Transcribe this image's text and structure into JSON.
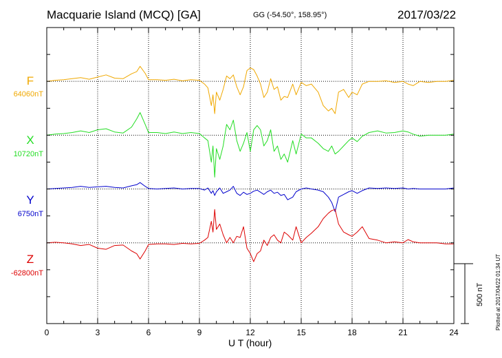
{
  "header": {
    "station": "Macquarie Island (MCQ)  [GA]",
    "coordinates": "GG (-54.50°, 158.95°)",
    "date": "2017/03/22"
  },
  "footer": {
    "plotted": "Plotted at 2017/04/22 01:34  UT"
  },
  "chart_data": {
    "type": "line",
    "title": "Macquarie Island (MCQ)  [GA]",
    "xlabel": "U T (hour)",
    "xlim": [
      0,
      24
    ],
    "xticks": [
      "0",
      "3",
      "6",
      "9",
      "12",
      "15",
      "18",
      "21",
      "24"
    ],
    "ylim": [
      -4.5,
      1.0
    ],
    "scale_bar": {
      "label": "500 nT",
      "value_nT": 500
    },
    "grid": true,
    "series": [
      {
        "name": "F",
        "baseline_label": "64060nT",
        "color": "#f0a800",
        "offset": 0,
        "t": [
          0,
          0.5,
          1,
          1.5,
          2,
          2.5,
          3,
          3.5,
          4,
          4.5,
          5,
          5.3,
          5.5,
          5.8,
          6,
          6.5,
          7,
          7.5,
          8,
          8.5,
          9,
          9.3,
          9.5,
          9.7,
          9.8,
          9.9,
          10,
          10.2,
          10.4,
          10.6,
          10.8,
          11,
          11.2,
          11.4,
          11.6,
          11.8,
          12,
          12.2,
          12.4,
          12.6,
          12.8,
          13,
          13.2,
          13.4,
          13.6,
          13.8,
          14,
          14.2,
          14.5,
          14.7,
          15,
          15.3,
          15.6,
          16,
          16.3,
          16.6,
          16.8,
          17,
          17.2,
          17.5,
          17.8,
          18,
          18.3,
          18.6,
          19,
          19.5,
          20,
          20.5,
          21,
          21.3,
          21.6,
          22,
          22.5,
          23,
          23.5,
          24
        ],
        "v": [
          0.0,
          0.02,
          0.03,
          0.05,
          0.07,
          0.04,
          0.08,
          0.12,
          0.06,
          0.05,
          0.14,
          0.18,
          0.28,
          0.15,
          0.03,
          0.03,
          0.02,
          0.04,
          0.01,
          0.03,
          0.02,
          -0.05,
          -0.12,
          -0.45,
          -0.25,
          -0.6,
          -0.2,
          -0.35,
          -0.15,
          0.1,
          0.05,
          0.12,
          -0.1,
          -0.25,
          -0.1,
          0.2,
          0.25,
          0.22,
          0.1,
          -0.05,
          -0.3,
          -0.2,
          0.05,
          -0.15,
          -0.1,
          -0.35,
          -0.28,
          -0.3,
          -0.05,
          -0.25,
          -0.02,
          -0.08,
          -0.05,
          -0.2,
          -0.45,
          -0.55,
          -0.5,
          -0.6,
          -0.2,
          -0.15,
          -0.3,
          -0.2,
          -0.25,
          -0.05,
          0.0,
          0.0,
          0.01,
          -0.02,
          0.0,
          -0.05,
          -0.08,
          0.0,
          -0.02,
          0.0,
          0.0,
          0.02
        ]
      },
      {
        "name": "X",
        "baseline_label": "10720nT",
        "color": "#22dd22",
        "offset": -1,
        "t": [
          0,
          0.5,
          1,
          1.5,
          2,
          2.5,
          3,
          3.5,
          4,
          4.5,
          5,
          5.3,
          5.5,
          5.8,
          6,
          6.5,
          7,
          7.5,
          8,
          8.5,
          9,
          9.3,
          9.5,
          9.7,
          9.8,
          9.9,
          10,
          10.2,
          10.4,
          10.6,
          10.8,
          11,
          11.2,
          11.4,
          11.6,
          11.8,
          12,
          12.2,
          12.4,
          12.6,
          12.8,
          13,
          13.2,
          13.4,
          13.6,
          13.8,
          14,
          14.2,
          14.5,
          14.7,
          15,
          15.3,
          15.6,
          16,
          16.3,
          16.6,
          16.8,
          17,
          17.2,
          17.5,
          17.8,
          18,
          18.3,
          18.6,
          19,
          19.5,
          20,
          20.5,
          21,
          21.3,
          21.6,
          22,
          22.5,
          23,
          23.5,
          24
        ],
        "v": [
          0.0,
          0.02,
          0.03,
          0.05,
          0.08,
          0.05,
          0.1,
          0.12,
          0.06,
          0.04,
          0.15,
          0.3,
          0.42,
          0.2,
          0.05,
          0.05,
          0.03,
          0.06,
          0.03,
          0.05,
          0.03,
          -0.05,
          -0.1,
          -0.5,
          -0.2,
          -0.78,
          -0.25,
          -0.45,
          -0.2,
          0.2,
          0.1,
          0.28,
          -0.1,
          -0.3,
          -0.15,
          0.05,
          -0.3,
          0.1,
          0.18,
          0.1,
          -0.2,
          -0.1,
          0.1,
          -0.3,
          -0.2,
          -0.45,
          -0.35,
          -0.5,
          -0.1,
          -0.35,
          0.02,
          -0.05,
          -0.05,
          -0.15,
          -0.25,
          -0.3,
          -0.2,
          -0.35,
          -0.3,
          -0.2,
          -0.1,
          -0.05,
          -0.12,
          -0.02,
          0.05,
          0.08,
          0.04,
          0.05,
          0.08,
          0.06,
          0.02,
          -0.02,
          0.0,
          0.0,
          0.0,
          0.02
        ]
      },
      {
        "name": "Y",
        "baseline_label": "6750nT",
        "color": "#0000cc",
        "offset": -2,
        "t": [
          0,
          0.5,
          1,
          1.5,
          2,
          2.5,
          3,
          3.5,
          4,
          4.5,
          5,
          5.3,
          5.5,
          5.8,
          6,
          6.5,
          7,
          7.5,
          8,
          8.5,
          9,
          9.3,
          9.5,
          9.7,
          9.8,
          9.9,
          10,
          10.2,
          10.4,
          10.6,
          10.8,
          11,
          11.2,
          11.4,
          11.6,
          11.8,
          12,
          12.2,
          12.4,
          12.6,
          12.8,
          13,
          13.2,
          13.4,
          13.6,
          13.8,
          14,
          14.2,
          14.5,
          14.7,
          15,
          15.3,
          15.6,
          16,
          16.3,
          16.6,
          16.8,
          17,
          17.2,
          17.5,
          17.8,
          18,
          18.3,
          18.6,
          19,
          19.5,
          20,
          20.5,
          21,
          21.3,
          21.6,
          22,
          22.5,
          23,
          23.5,
          24
        ],
        "v": [
          0.0,
          0.01,
          0.02,
          0.03,
          0.05,
          0.03,
          0.04,
          0.05,
          0.03,
          0.02,
          0.06,
          0.08,
          0.12,
          0.05,
          0.01,
          0.0,
          0.01,
          0.02,
          0.0,
          0.01,
          0.01,
          -0.02,
          0.02,
          -0.08,
          -0.03,
          -0.12,
          -0.05,
          0.02,
          -0.08,
          -0.05,
          -0.02,
          0.05,
          -0.08,
          -0.12,
          -0.06,
          -0.1,
          -0.08,
          -0.04,
          -0.02,
          -0.06,
          -0.1,
          -0.05,
          -0.02,
          -0.08,
          -0.06,
          -0.12,
          -0.1,
          -0.2,
          -0.15,
          -0.05,
          0.0,
          0.02,
          0.0,
          -0.02,
          -0.05,
          -0.15,
          -0.25,
          -0.42,
          -0.15,
          -0.1,
          -0.05,
          -0.03,
          -0.08,
          -0.03,
          0.02,
          0.01,
          0.02,
          0.01,
          0.02,
          0.0,
          0.01,
          0.0,
          0.0,
          0.0,
          0.0,
          0.02
        ]
      },
      {
        "name": "Z",
        "baseline_label": "-62800nT",
        "color": "#dd0000",
        "offset": -3,
        "t": [
          0,
          0.5,
          1,
          1.5,
          2,
          2.5,
          3,
          3.5,
          4,
          4.5,
          5,
          5.3,
          5.5,
          5.8,
          6,
          6.5,
          7,
          7.5,
          8,
          8.5,
          9,
          9.3,
          9.5,
          9.7,
          9.8,
          9.9,
          10,
          10.2,
          10.4,
          10.6,
          10.8,
          11,
          11.2,
          11.4,
          11.6,
          11.8,
          12,
          12.2,
          12.4,
          12.6,
          12.8,
          13,
          13.2,
          13.4,
          13.6,
          13.8,
          14,
          14.2,
          14.5,
          14.7,
          15,
          15.3,
          15.6,
          16,
          16.3,
          16.6,
          16.8,
          17,
          17.2,
          17.5,
          17.8,
          18,
          18.3,
          18.6,
          19,
          19.5,
          20,
          20.5,
          21,
          21.3,
          21.6,
          22,
          22.5,
          23,
          23.5,
          24
        ],
        "v": [
          0.0,
          0.01,
          0.0,
          -0.02,
          -0.05,
          -0.03,
          -0.1,
          -0.12,
          -0.05,
          -0.04,
          -0.15,
          -0.2,
          -0.3,
          -0.15,
          -0.03,
          -0.02,
          -0.02,
          -0.03,
          -0.01,
          -0.02,
          -0.01,
          0.05,
          0.1,
          0.4,
          0.2,
          0.62,
          0.25,
          0.35,
          0.15,
          0.0,
          0.1,
          0.0,
          0.12,
          0.1,
          0.3,
          -0.1,
          -0.2,
          -0.35,
          -0.2,
          -0.15,
          0.05,
          -0.05,
          0.1,
          0.15,
          0.05,
          0.0,
          0.2,
          0.15,
          0.05,
          0.3,
          0.0,
          0.1,
          0.18,
          0.3,
          0.45,
          0.55,
          0.6,
          0.62,
          0.35,
          0.2,
          0.15,
          0.12,
          0.2,
          0.3,
          0.08,
          0.05,
          0.0,
          0.02,
          0.0,
          0.06,
          0.02,
          0.0,
          0.0,
          0.0,
          -0.02,
          -0.02
        ]
      }
    ]
  }
}
